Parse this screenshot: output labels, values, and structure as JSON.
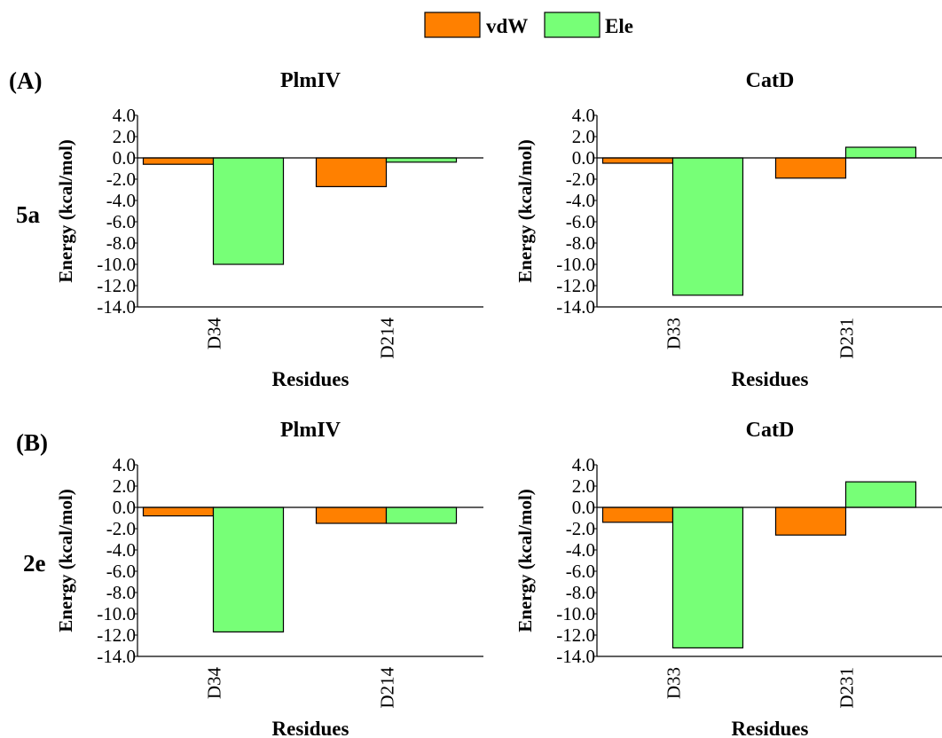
{
  "legend": {
    "items": [
      {
        "label": "vdW",
        "color": "#ff8000"
      },
      {
        "label": "Ele",
        "color": "#77ff77"
      }
    ]
  },
  "rows": [
    {
      "panel_label": "(A)",
      "ligand_label": "5a"
    },
    {
      "panel_label": "(B)",
      "ligand_label": "2e"
    }
  ],
  "chart_data": [
    {
      "type": "bar",
      "row": 0,
      "col": 0,
      "title": "PlmIV",
      "categories": [
        "D34",
        "D214"
      ],
      "series": [
        {
          "name": "vdW",
          "values": [
            -0.6,
            -2.7
          ]
        },
        {
          "name": "Ele",
          "values": [
            -10.0,
            -0.4
          ]
        }
      ],
      "xlabel": "Residues",
      "ylabel": "Energy (kcal/mol)",
      "ylim": [
        -14.0,
        4.0
      ],
      "yticks": [
        "4.0",
        "2.0",
        "0.0",
        "-2.0",
        "-4.0",
        "-6.0",
        "-8.0",
        "-10.0",
        "-12.0",
        "-14.0"
      ],
      "grid": false
    },
    {
      "type": "bar",
      "row": 0,
      "col": 1,
      "title": "CatD",
      "categories": [
        "D33",
        "D231"
      ],
      "series": [
        {
          "name": "vdW",
          "values": [
            -0.5,
            -1.9
          ]
        },
        {
          "name": "Ele",
          "values": [
            -12.9,
            1.0
          ]
        }
      ],
      "xlabel": "Residues",
      "ylabel": "Energy (kcal/mol)",
      "ylim": [
        -14.0,
        4.0
      ],
      "yticks": [
        "4.0",
        "2.0",
        "0.0",
        "-2.0",
        "-4.0",
        "-6.0",
        "-8.0",
        "-10.0",
        "-12.0",
        "-14.0"
      ],
      "grid": false
    },
    {
      "type": "bar",
      "row": 1,
      "col": 0,
      "title": "PlmIV",
      "categories": [
        "D34",
        "D214"
      ],
      "series": [
        {
          "name": "vdW",
          "values": [
            -0.8,
            -1.5
          ]
        },
        {
          "name": "Ele",
          "values": [
            -11.7,
            -1.5
          ]
        }
      ],
      "xlabel": "Residues",
      "ylabel": "Energy (kcal/mol)",
      "ylim": [
        -14.0,
        4.0
      ],
      "yticks": [
        "4.0",
        "2.0",
        "0.0",
        "-2.0",
        "-4.0",
        "-6.0",
        "-8.0",
        "-10.0",
        "-12.0",
        "-14.0"
      ],
      "grid": false
    },
    {
      "type": "bar",
      "row": 1,
      "col": 1,
      "title": "CatD",
      "categories": [
        "D33",
        "D231"
      ],
      "series": [
        {
          "name": "vdW",
          "values": [
            -1.4,
            -2.6
          ]
        },
        {
          "name": "Ele",
          "values": [
            -13.2,
            2.4
          ]
        }
      ],
      "xlabel": "Residues",
      "ylabel": "Energy (kcal/mol)",
      "ylim": [
        -14.0,
        4.0
      ],
      "yticks": [
        "4.0",
        "2.0",
        "0.0",
        "-2.0",
        "-4.0",
        "-6.0",
        "-8.0",
        "-10.0",
        "-12.0",
        "-14.0"
      ],
      "grid": false
    }
  ]
}
